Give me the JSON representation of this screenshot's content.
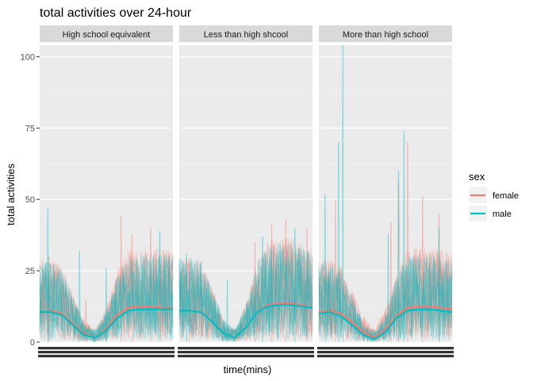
{
  "chart_data": {
    "type": "line",
    "title": "total activities over 24-hour",
    "xlabel": "time(mins)",
    "ylabel": "total activities",
    "ylim": [
      0,
      104
    ],
    "yticks": [
      0,
      25,
      50,
      75,
      100
    ],
    "xlim": [
      1,
      1440
    ],
    "grid": true,
    "legend": {
      "title": "sex",
      "placement": "right",
      "entries": [
        {
          "label": "female",
          "color": "#F8766D"
        },
        {
          "label": "male",
          "color": "#00BFC4"
        }
      ]
    },
    "facets": [
      {
        "label": "High school equivalent",
        "smooth": [
          {
            "name": "female",
            "x": [
              1,
              120,
              240,
              360,
              480,
              600,
              720,
              840,
              960,
              1080,
              1200,
              1320,
              1440
            ],
            "y": [
              10.5,
              11,
              10,
              6.5,
              3,
              1.5,
              4.5,
              9.5,
              12,
              12.5,
              12.5,
              12,
              12
            ]
          },
          {
            "name": "male",
            "x": [
              1,
              120,
              240,
              360,
              480,
              600,
              720,
              840,
              960,
              1080,
              1200,
              1320,
              1440
            ],
            "y": [
              10.5,
              10.5,
              9.5,
              6,
              2.5,
              1.5,
              4,
              8.5,
              11,
              11.5,
              11.5,
              11.5,
              11.5
            ]
          }
        ],
        "peaks": {
          "female": {
            "x": [
              100,
              500,
              880,
              1000,
              1200
            ],
            "y": [
              30,
              15,
              44,
              38,
              40
            ]
          },
          "male": {
            "x": [
              90,
              430,
              720,
              1300
            ],
            "y": [
              47,
              32,
              26,
              39
            ]
          }
        }
      },
      {
        "label": "Less than high shcool",
        "smooth": [
          {
            "name": "female",
            "x": [
              1,
              120,
              240,
              360,
              480,
              600,
              720,
              840,
              960,
              1080,
              1200,
              1320,
              1440
            ],
            "y": [
              11,
              11,
              10.5,
              7,
              3,
              1.5,
              5,
              10.5,
              13,
              13.5,
              13.5,
              13,
              12
            ]
          },
          {
            "name": "male",
            "x": [
              1,
              120,
              240,
              360,
              480,
              600,
              720,
              840,
              960,
              1080,
              1200,
              1320,
              1440
            ],
            "y": [
              11,
              11,
              10.5,
              7,
              3,
              1.5,
              5,
              10.5,
              12.5,
              13,
              13,
              12.5,
              12
            ]
          }
        ],
        "peaks": {
          "female": {
            "x": [
              110,
              820,
              1000,
              1150,
              1380
            ],
            "y": [
              28,
              35,
              41,
              43,
              40
            ]
          },
          "male": {
            "x": [
              80,
              520,
              900,
              1250
            ],
            "y": [
              31,
              22,
              37,
              40
            ]
          }
        }
      },
      {
        "label": "More than high school",
        "smooth": [
          {
            "name": "female",
            "x": [
              1,
              120,
              240,
              360,
              480,
              600,
              720,
              840,
              960,
              1080,
              1200,
              1320,
              1440
            ],
            "y": [
              10.5,
              11,
              10,
              7,
              3.5,
              1.5,
              4.5,
              9,
              12,
              12.5,
              12.5,
              12,
              11.5
            ]
          },
          {
            "name": "male",
            "x": [
              1,
              120,
              240,
              360,
              480,
              600,
              720,
              840,
              960,
              1080,
              1200,
              1320,
              1440
            ],
            "y": [
              10,
              10.5,
              9,
              6,
              2.5,
              1,
              3.5,
              8.5,
              11,
              11.5,
              11.5,
              11,
              10.5
            ]
          }
        ],
        "peaks": {
          "female": {
            "x": [
              180,
              780,
              860,
              960,
              1120,
              1300
            ],
            "y": [
              50,
              42,
              56,
              70,
              51,
              45
            ]
          },
          "male": {
            "x": [
              70,
              215,
              260,
              750,
              860,
              920,
              1300
            ],
            "y": [
              52,
              70,
              104,
              38,
              60,
              74,
              40
            ]
          }
        }
      }
    ]
  }
}
